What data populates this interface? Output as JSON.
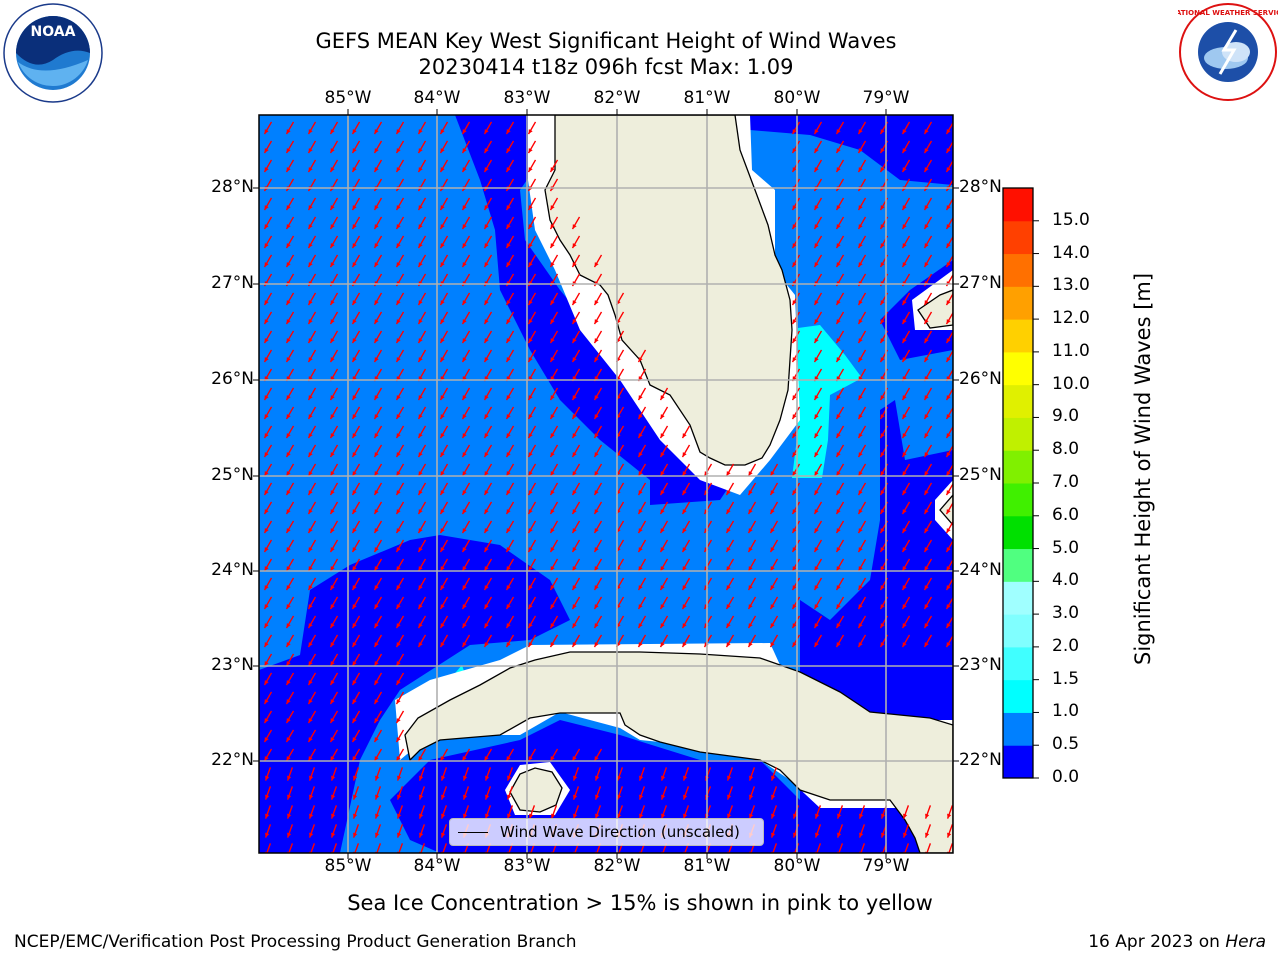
{
  "title": {
    "line1": "GEFS MEAN Key West Significant Height of Wind Waves",
    "line2": "20230414 t18z 096h fcst   Max: 1.09"
  },
  "map": {
    "lon_labels": [
      "85°W",
      "84°W",
      "83°W",
      "82°W",
      "81°W",
      "80°W",
      "79°W"
    ],
    "lat_labels": [
      "28°N",
      "27°N",
      "26°N",
      "25°N",
      "24°N",
      "23°N",
      "22°N"
    ],
    "legend_label": "Wind Wave Direction (unscaled)",
    "arrow_color": "#ff0000",
    "land_color": "#eeeedc",
    "grid_color": "#b0b0b0"
  },
  "colorbar": {
    "label": "Significant Height of Wind Waves [m]",
    "ticks": [
      "0.0",
      "0.5",
      "1.0",
      "1.5",
      "2.0",
      "3.0",
      "4.0",
      "5.0",
      "6.0",
      "7.0",
      "8.0",
      "9.0",
      "10.0",
      "11.0",
      "12.0",
      "13.0",
      "14.0",
      "15.0"
    ],
    "colors": [
      "#0000ff",
      "#0080ff",
      "#00ffff",
      "#40ffff",
      "#80ffff",
      "#a0ffff",
      "#50ff80",
      "#00e000",
      "#40f000",
      "#80f000",
      "#c0f000",
      "#e0f000",
      "#ffff00",
      "#ffd000",
      "#ffa000",
      "#ff7000",
      "#ff4000",
      "#ff1000"
    ]
  },
  "logos": {
    "left_text": "NOAA",
    "right_text": "NATIONAL WEATHER SERVICE"
  },
  "footer": {
    "note": "Sea Ice Concentration > 15% is shown in pink to yellow",
    "credit_left": "NCEP/EMC/Verification Post Processing Product Generation Branch",
    "credit_right_date": "16 Apr 2023 on ",
    "credit_right_host": "Hera"
  }
}
